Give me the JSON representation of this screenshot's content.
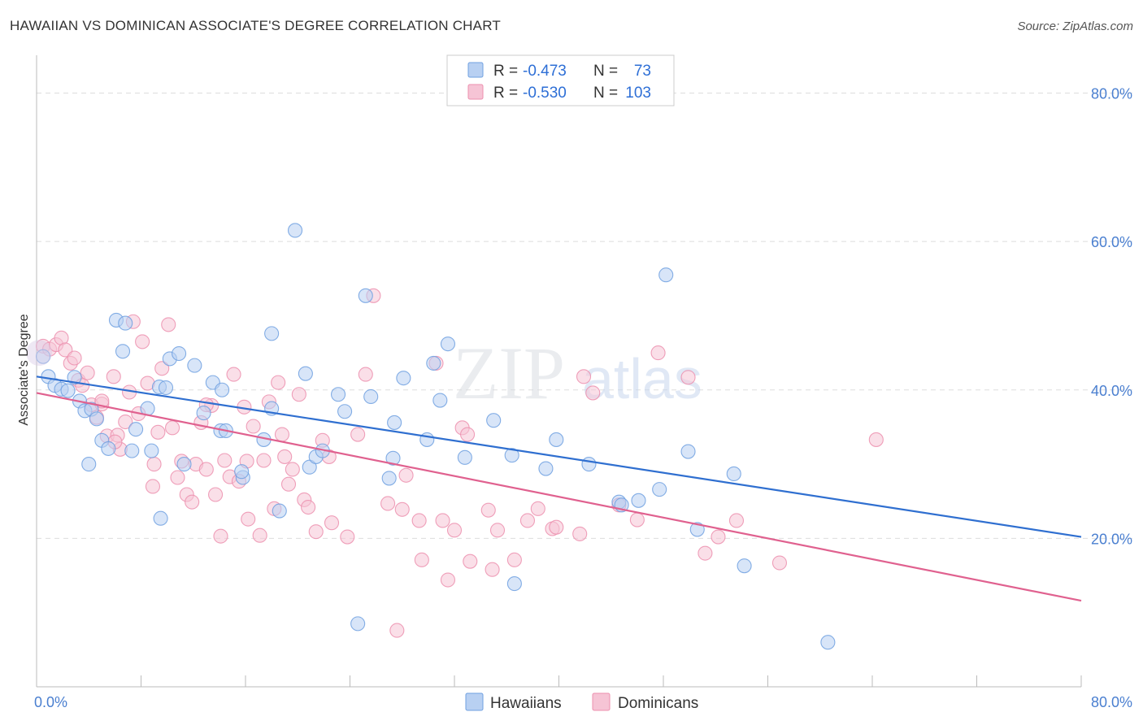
{
  "header": {
    "title": "HAWAIIAN VS DOMINICAN ASSOCIATE'S DEGREE CORRELATION CHART",
    "source": "Source: ZipAtlas.com"
  },
  "colors": {
    "hawaiians": "#6fa0e0",
    "hawaiians_fill": "#b8d0f2",
    "hawaiians_line": "#2f6fd0",
    "dominicans": "#ec8fae",
    "dominicans_fill": "#f6c4d5",
    "dominicans_line": "#e0618f",
    "grid": "#dddddd",
    "tick_text": "#4a7fd0"
  },
  "legend": {
    "rows": [
      {
        "r_label": "R =",
        "r_value": "-0.473",
        "n_label": "N =",
        "n_value": "73"
      },
      {
        "r_label": "R =",
        "r_value": "-0.530",
        "n_label": "N =",
        "n_value": "103"
      }
    ]
  },
  "watermark": {
    "zip": "ZIP",
    "atlas": "atlas"
  },
  "chart_data": {
    "type": "scatter",
    "title": "HAWAIIAN VS DOMINICAN ASSOCIATE'S DEGREE CORRELATION CHART",
    "xlabel": "",
    "ylabel": "Associate's Degree",
    "xlim": [
      0,
      80
    ],
    "ylim": [
      0,
      84
    ],
    "x_tick_labels": [
      "0.0%",
      "80.0%"
    ],
    "y_ticks": [
      20,
      40,
      60,
      80
    ],
    "y_tick_labels": [
      "20.0%",
      "40.0%",
      "60.0%",
      "80.0%"
    ],
    "grid": true,
    "legend_position": "top-center",
    "series": [
      {
        "name": "Hawaiians",
        "trend": {
          "x0": 0,
          "y0": 41.8,
          "x1": 80,
          "y1": 20.2
        },
        "points": [
          [
            0.5,
            44.5
          ],
          [
            0.9,
            41.8
          ],
          [
            1.4,
            40.6
          ],
          [
            1.9,
            40.1
          ],
          [
            2.4,
            39.9
          ],
          [
            2.9,
            41.7
          ],
          [
            3.3,
            38.5
          ],
          [
            3.7,
            37.2
          ],
          [
            4.2,
            37.4
          ],
          [
            4.6,
            36.1
          ],
          [
            5.0,
            33.2
          ],
          [
            5.5,
            32.1
          ],
          [
            6.1,
            49.4
          ],
          [
            6.6,
            45.2
          ],
          [
            7.3,
            31.8
          ],
          [
            7.6,
            34.7
          ],
          [
            8.5,
            37.5
          ],
          [
            8.8,
            31.8
          ],
          [
            9.4,
            40.4
          ],
          [
            9.9,
            40.3
          ],
          [
            10.2,
            44.2
          ],
          [
            10.9,
            44.9
          ],
          [
            11.3,
            30.0
          ],
          [
            12.1,
            43.3
          ],
          [
            12.8,
            36.9
          ],
          [
            13.5,
            41.0
          ],
          [
            14.1,
            34.5
          ],
          [
            14.5,
            34.5
          ],
          [
            15.8,
            28.2
          ],
          [
            17.4,
            33.3
          ],
          [
            18.0,
            47.6
          ],
          [
            18.6,
            23.7
          ],
          [
            19.8,
            61.5
          ],
          [
            20.6,
            42.2
          ],
          [
            20.9,
            29.6
          ],
          [
            21.4,
            31.0
          ],
          [
            21.9,
            31.8
          ],
          [
            23.1,
            39.4
          ],
          [
            23.6,
            37.1
          ],
          [
            25.2,
            52.7
          ],
          [
            25.6,
            39.1
          ],
          [
            27.0,
            28.1
          ],
          [
            27.3,
            30.8
          ],
          [
            28.1,
            41.6
          ],
          [
            29.9,
            33.3
          ],
          [
            30.4,
            43.6
          ],
          [
            30.9,
            38.6
          ],
          [
            31.5,
            46.2
          ],
          [
            32.8,
            30.9
          ],
          [
            35.0,
            35.9
          ],
          [
            36.4,
            31.2
          ],
          [
            39.0,
            29.4
          ],
          [
            39.8,
            33.3
          ],
          [
            42.3,
            30.0
          ],
          [
            44.6,
            24.9
          ],
          [
            44.8,
            24.5
          ],
          [
            46.1,
            25.1
          ],
          [
            47.7,
            26.6
          ],
          [
            48.2,
            55.5
          ],
          [
            49.9,
            31.7
          ],
          [
            50.6,
            21.2
          ],
          [
            53.4,
            28.7
          ],
          [
            54.2,
            16.3
          ],
          [
            60.6,
            6.0
          ],
          [
            6.8,
            49.0
          ],
          [
            9.5,
            22.7
          ],
          [
            24.6,
            8.5
          ],
          [
            36.6,
            13.9
          ],
          [
            15.7,
            29.0
          ],
          [
            4.0,
            30.0
          ],
          [
            14.2,
            40.0
          ],
          [
            18.0,
            37.5
          ],
          [
            27.4,
            35.6
          ]
        ]
      },
      {
        "name": "Dominicans",
        "trend": {
          "x0": 0,
          "y0": 39.6,
          "x1": 80,
          "y1": 11.6
        },
        "points": [
          [
            0.5,
            45.9
          ],
          [
            1.0,
            45.5
          ],
          [
            1.5,
            46.1
          ],
          [
            1.9,
            47.0
          ],
          [
            2.2,
            45.4
          ],
          [
            2.6,
            43.6
          ],
          [
            2.9,
            44.3
          ],
          [
            3.2,
            41.3
          ],
          [
            3.5,
            40.6
          ],
          [
            3.9,
            42.3
          ],
          [
            4.2,
            38.0
          ],
          [
            4.6,
            36.3
          ],
          [
            5.0,
            38.1
          ],
          [
            5.4,
            33.8
          ],
          [
            5.9,
            41.8
          ],
          [
            6.2,
            33.9
          ],
          [
            6.4,
            32.0
          ],
          [
            6.8,
            35.7
          ],
          [
            7.1,
            39.7
          ],
          [
            7.4,
            49.2
          ],
          [
            7.8,
            36.8
          ],
          [
            8.1,
            46.5
          ],
          [
            8.5,
            40.9
          ],
          [
            8.9,
            27.0
          ],
          [
            9.3,
            34.3
          ],
          [
            9.6,
            42.9
          ],
          [
            10.1,
            48.8
          ],
          [
            10.4,
            34.9
          ],
          [
            10.8,
            28.2
          ],
          [
            11.1,
            30.4
          ],
          [
            11.5,
            25.9
          ],
          [
            11.9,
            24.9
          ],
          [
            12.2,
            30.0
          ],
          [
            12.6,
            35.6
          ],
          [
            13.0,
            29.3
          ],
          [
            13.4,
            37.9
          ],
          [
            13.7,
            25.9
          ],
          [
            14.1,
            20.3
          ],
          [
            14.4,
            30.5
          ],
          [
            14.8,
            28.3
          ],
          [
            15.1,
            42.1
          ],
          [
            15.5,
            27.7
          ],
          [
            15.9,
            37.7
          ],
          [
            16.2,
            22.6
          ],
          [
            16.6,
            35.1
          ],
          [
            17.1,
            20.4
          ],
          [
            17.4,
            30.5
          ],
          [
            17.8,
            38.4
          ],
          [
            18.2,
            24.0
          ],
          [
            18.5,
            41.0
          ],
          [
            18.8,
            34.0
          ],
          [
            19.3,
            27.3
          ],
          [
            19.6,
            29.3
          ],
          [
            20.1,
            39.4
          ],
          [
            20.5,
            25.2
          ],
          [
            20.8,
            24.2
          ],
          [
            21.4,
            20.9
          ],
          [
            21.9,
            33.2
          ],
          [
            22.6,
            22.1
          ],
          [
            23.8,
            20.2
          ],
          [
            24.6,
            34.0
          ],
          [
            25.2,
            42.1
          ],
          [
            25.8,
            52.7
          ],
          [
            26.9,
            24.7
          ],
          [
            27.6,
            7.6
          ],
          [
            28.0,
            23.9
          ],
          [
            28.3,
            28.5
          ],
          [
            29.3,
            22.4
          ],
          [
            29.5,
            17.1
          ],
          [
            30.6,
            43.6
          ],
          [
            31.1,
            22.4
          ],
          [
            31.5,
            14.4
          ],
          [
            32.0,
            21.1
          ],
          [
            32.6,
            34.9
          ],
          [
            33.0,
            34.0
          ],
          [
            33.2,
            16.9
          ],
          [
            34.6,
            23.8
          ],
          [
            34.9,
            15.8
          ],
          [
            35.3,
            21.1
          ],
          [
            36.6,
            17.1
          ],
          [
            37.6,
            22.4
          ],
          [
            38.4,
            24.0
          ],
          [
            39.5,
            21.3
          ],
          [
            39.8,
            21.5
          ],
          [
            41.6,
            20.6
          ],
          [
            41.9,
            41.8
          ],
          [
            42.6,
            39.6
          ],
          [
            44.6,
            24.5
          ],
          [
            46.0,
            22.5
          ],
          [
            47.6,
            45.0
          ],
          [
            49.9,
            41.7
          ],
          [
            51.2,
            18.0
          ],
          [
            52.2,
            20.2
          ],
          [
            53.6,
            22.4
          ],
          [
            56.9,
            16.7
          ],
          [
            64.3,
            33.3
          ],
          [
            9.0,
            30.0
          ],
          [
            13.0,
            38.0
          ],
          [
            16.1,
            30.4
          ],
          [
            19.0,
            31.0
          ],
          [
            22.4,
            31.0
          ],
          [
            6.0,
            33.0
          ],
          [
            5.0,
            38.5
          ]
        ]
      }
    ]
  },
  "bottom_legend": {
    "items": [
      {
        "label": "Hawaiians"
      },
      {
        "label": "Dominicans"
      }
    ]
  }
}
